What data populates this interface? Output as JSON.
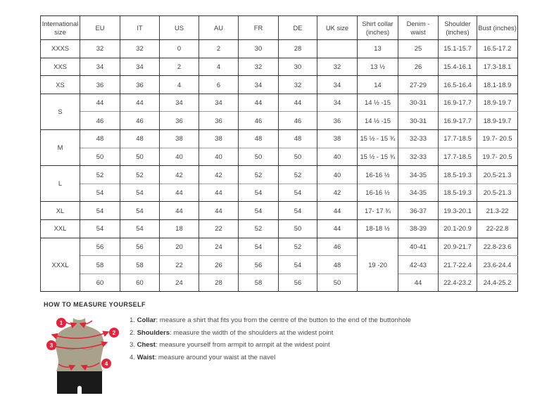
{
  "colors": {
    "accent_red": "#e5233a",
    "body_olive": "#a9a28a",
    "shorts_black": "#1a1a1a",
    "table_border": "#2d2d2d",
    "text": "#3d3d3d"
  },
  "size_table": {
    "headers": [
      "International size",
      "EU",
      "IT",
      "US",
      "AU",
      "FR",
      "DE",
      "UK size",
      "Shirt collar (inches)",
      "Denim - waist",
      "Shoulder (inches)",
      "Bust (inches)"
    ],
    "rows": [
      {
        "g": true,
        "cells": [
          {
            "t": "XXXS"
          },
          {
            "t": "32"
          },
          {
            "t": "32"
          },
          {
            "t": "0"
          },
          {
            "t": "2"
          },
          {
            "t": "30"
          },
          {
            "t": "28"
          },
          {
            "t": ""
          },
          {
            "t": "13"
          },
          {
            "t": "25"
          },
          {
            "t": "15.1-15.7"
          },
          {
            "t": "16.5-17.2"
          }
        ]
      },
      {
        "g": true,
        "cells": [
          {
            "t": "XXS"
          },
          {
            "t": "34"
          },
          {
            "t": "34"
          },
          {
            "t": "2"
          },
          {
            "t": "4"
          },
          {
            "t": "32"
          },
          {
            "t": "30"
          },
          {
            "t": "32"
          },
          {
            "t": "13 ½"
          },
          {
            "t": "26"
          },
          {
            "t": "15.4-16.1"
          },
          {
            "t": "17.3-18.1"
          }
        ]
      },
      {
        "g": true,
        "cells": [
          {
            "t": "XS"
          },
          {
            "t": "36"
          },
          {
            "t": "36"
          },
          {
            "t": "4"
          },
          {
            "t": "6"
          },
          {
            "t": "34"
          },
          {
            "t": "32"
          },
          {
            "t": "34"
          },
          {
            "t": "14"
          },
          {
            "t": "27-29"
          },
          {
            "t": "16.5-16.4"
          },
          {
            "t": "18.1-18.9"
          }
        ]
      },
      {
        "g": true,
        "cells": [
          {
            "t": "S",
            "rs": 2
          },
          {
            "t": "44"
          },
          {
            "t": "44"
          },
          {
            "t": "34"
          },
          {
            "t": "34"
          },
          {
            "t": "44"
          },
          {
            "t": "44"
          },
          {
            "t": "34"
          },
          {
            "t": "14 ½ -15"
          },
          {
            "t": "30-31"
          },
          {
            "t": "16.9-17.7"
          },
          {
            "t": "18.9-19.7"
          }
        ]
      },
      {
        "g": false,
        "cells": [
          {
            "t": "46"
          },
          {
            "t": "46"
          },
          {
            "t": "36"
          },
          {
            "t": "36"
          },
          {
            "t": "46"
          },
          {
            "t": "46"
          },
          {
            "t": "36"
          },
          {
            "t": "14 ½ -15"
          },
          {
            "t": "30-31"
          },
          {
            "t": "16.9-17.7"
          },
          {
            "t": "18.9-19.7"
          }
        ]
      },
      {
        "g": true,
        "cells": [
          {
            "t": "M",
            "rs": 2
          },
          {
            "t": "48"
          },
          {
            "t": "48"
          },
          {
            "t": "38"
          },
          {
            "t": "38"
          },
          {
            "t": "48"
          },
          {
            "t": "48"
          },
          {
            "t": "38"
          },
          {
            "t": "15 ½ - 15 ¾"
          },
          {
            "t": "32-33"
          },
          {
            "t": "17.7-18.5"
          },
          {
            "t": "19.7- 20.5"
          }
        ]
      },
      {
        "g": false,
        "cells": [
          {
            "t": "50"
          },
          {
            "t": "50"
          },
          {
            "t": "40"
          },
          {
            "t": "40"
          },
          {
            "t": "50"
          },
          {
            "t": "50"
          },
          {
            "t": "40"
          },
          {
            "t": "15 ½ - 15 ¾"
          },
          {
            "t": "32-33"
          },
          {
            "t": "17.7-18.5"
          },
          {
            "t": "19.7- 20.5"
          }
        ]
      },
      {
        "g": true,
        "cells": [
          {
            "t": "L",
            "rs": 2
          },
          {
            "t": "52"
          },
          {
            "t": "52"
          },
          {
            "t": "42"
          },
          {
            "t": "42"
          },
          {
            "t": "52"
          },
          {
            "t": "52"
          },
          {
            "t": "40"
          },
          {
            "t": "16-16 ½"
          },
          {
            "t": "34-35"
          },
          {
            "t": "18.5-19.3"
          },
          {
            "t": "20.5-21.3"
          }
        ]
      },
      {
        "g": false,
        "cells": [
          {
            "t": "54"
          },
          {
            "t": "54"
          },
          {
            "t": "44"
          },
          {
            "t": "44"
          },
          {
            "t": "54"
          },
          {
            "t": "54"
          },
          {
            "t": "42"
          },
          {
            "t": "16-16 ½"
          },
          {
            "t": "34-35"
          },
          {
            "t": "18.5-19.3"
          },
          {
            "t": "20.5-21.3"
          }
        ]
      },
      {
        "g": true,
        "cells": [
          {
            "t": "XL"
          },
          {
            "t": "54"
          },
          {
            "t": "54"
          },
          {
            "t": "44"
          },
          {
            "t": "44"
          },
          {
            "t": "54"
          },
          {
            "t": "54"
          },
          {
            "t": "44"
          },
          {
            "t": "17- 17 ¾"
          },
          {
            "t": "36-37"
          },
          {
            "t": "19.3-20.1"
          },
          {
            "t": "21.3-22"
          }
        ]
      },
      {
        "g": true,
        "cells": [
          {
            "t": "XXL"
          },
          {
            "t": "54"
          },
          {
            "t": "54"
          },
          {
            "t": "18"
          },
          {
            "t": "22"
          },
          {
            "t": "52"
          },
          {
            "t": "50"
          },
          {
            "t": "44"
          },
          {
            "t": "18-18 ½"
          },
          {
            "t": "38-39"
          },
          {
            "t": "20.1-20.9"
          },
          {
            "t": "22-22.8"
          }
        ]
      },
      {
        "g": true,
        "cells": [
          {
            "t": "XXXL",
            "rs": 3
          },
          {
            "t": "56"
          },
          {
            "t": "56"
          },
          {
            "t": "20"
          },
          {
            "t": "24"
          },
          {
            "t": "54"
          },
          {
            "t": "52"
          },
          {
            "t": "46"
          },
          {
            "t": "19 -20",
            "rs": 3
          },
          {
            "t": "40-41"
          },
          {
            "t": "20.9-21.7"
          },
          {
            "t": "22.8-23.6"
          }
        ]
      },
      {
        "g": false,
        "cells": [
          {
            "t": "58"
          },
          {
            "t": "58"
          },
          {
            "t": "22"
          },
          {
            "t": "26"
          },
          {
            "t": "56"
          },
          {
            "t": "54"
          },
          {
            "t": "48"
          },
          {
            "t": "42-43"
          },
          {
            "t": "21.7-22.4"
          },
          {
            "t": "23.6-24.4"
          }
        ]
      },
      {
        "g": false,
        "cells": [
          {
            "t": "60"
          },
          {
            "t": "60"
          },
          {
            "t": "24"
          },
          {
            "t": "28"
          },
          {
            "t": "58"
          },
          {
            "t": "56"
          },
          {
            "t": "50"
          },
          {
            "t": "44"
          },
          {
            "t": "22.4-23.2"
          },
          {
            "t": "24.4-25.2"
          }
        ]
      }
    ]
  },
  "measure": {
    "title": "HOW TO MEASURE YOURSELF",
    "steps": [
      {
        "num": "1.",
        "term": "Collar",
        "rest": ": measure a shirt that fits you from the centre of the button to the end of the buttonhole"
      },
      {
        "num": "2.",
        "term": "Shoulders",
        "rest": ": measure the width of the shoulders at the widest point"
      },
      {
        "num": "3.",
        "term": "Chest",
        "rest": ": measure yourself from armpit to armpit at the widest point"
      },
      {
        "num": "4.",
        "term": "Waist",
        "rest": ": measure around your waist at the navel"
      }
    ],
    "figure_markers": [
      "1",
      "2",
      "3",
      "4"
    ]
  }
}
